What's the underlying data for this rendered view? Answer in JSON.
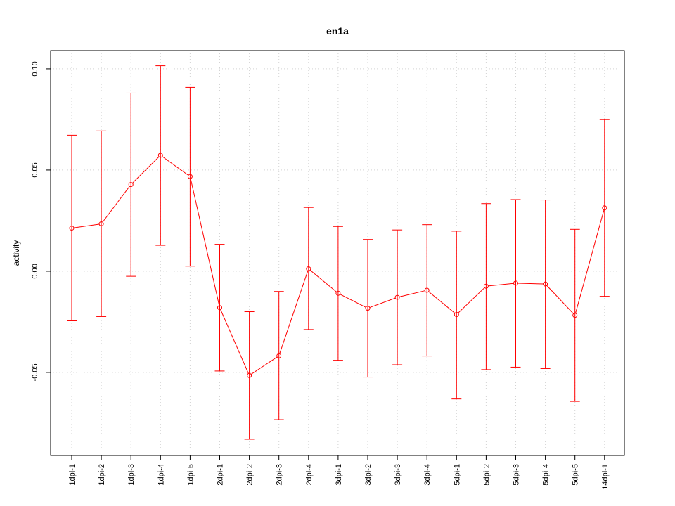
{
  "chart_data": {
    "type": "line",
    "title": "en1a",
    "xlabel": "",
    "ylabel": "activity",
    "categories": [
      "1dpi-1",
      "1dpi-2",
      "1dpi-3",
      "1dpi-4",
      "1dpi-5",
      "2dpi-1",
      "2dpi-2",
      "2dpi-3",
      "2dpi-4",
      "3dpi-1",
      "3dpi-2",
      "3dpi-3",
      "3dpi-4",
      "5dpi-1",
      "5dpi-2",
      "5dpi-3",
      "5dpi-4",
      "5dpi-5",
      "14dpi-1"
    ],
    "series": [
      {
        "values": [
          0.0213,
          0.0234,
          0.0428,
          0.0573,
          0.0468,
          -0.018,
          -0.0515,
          -0.0418,
          0.0012,
          -0.0109,
          -0.0183,
          -0.0129,
          -0.0094,
          -0.0214,
          -0.0074,
          -0.0059,
          -0.0063,
          -0.0218,
          0.0313
        ],
        "lower": [
          -0.0245,
          -0.0224,
          -0.0025,
          0.0128,
          0.0025,
          -0.0493,
          -0.083,
          -0.0733,
          -0.0288,
          -0.044,
          -0.0523,
          -0.0462,
          -0.0419,
          -0.0631,
          -0.0486,
          -0.0474,
          -0.0481,
          -0.0643,
          -0.0124
        ],
        "upper": [
          0.0672,
          0.0693,
          0.088,
          0.1015,
          0.0908,
          0.0133,
          -0.02,
          -0.01,
          0.0315,
          0.0221,
          0.0157,
          0.0204,
          0.023,
          0.0198,
          0.0334,
          0.0354,
          0.0352,
          0.0207,
          0.0749
        ]
      }
    ],
    "ylim": [
      -0.091,
      0.109
    ],
    "yticks": [
      -0.05,
      0.0,
      0.05,
      0.1
    ],
    "ytick_labels": [
      "-0.05",
      "0.00",
      "0.05",
      "0.10"
    ],
    "grid": true,
    "colors": {
      "series": "#ff0000",
      "grid": "#d3d3d3",
      "axis": "#000000"
    }
  }
}
